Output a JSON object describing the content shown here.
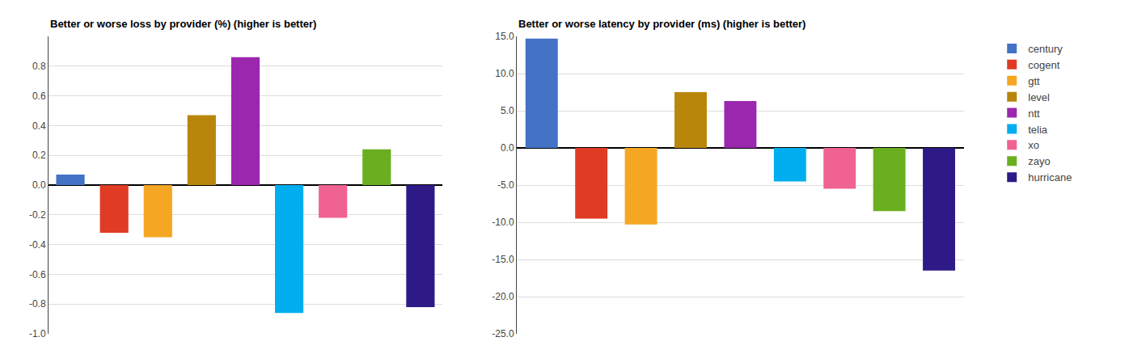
{
  "chart_data": [
    {
      "type": "bar",
      "title": "Better or worse loss by provider (%) (higher is better)",
      "categories": [
        "century",
        "cogent",
        "gtt",
        "level",
        "ntt",
        "telia",
        "xo",
        "zayo",
        "hurricane"
      ],
      "values": [
        0.07,
        -0.32,
        -0.35,
        0.47,
        0.86,
        -0.86,
        -0.22,
        0.24,
        -0.82
      ],
      "colors": [
        "#4472C4",
        "#E03B24",
        "#F5A623",
        "#B8860B",
        "#9B27AF",
        "#00AEEF",
        "#F06292",
        "#6AAF20",
        "#2E1A87"
      ],
      "ylim": [
        -1.0,
        1.0
      ],
      "yticks": [
        {
          "value": -1.0,
          "label": "-1.0"
        },
        -0.8,
        -0.6,
        -0.4,
        -0.2,
        {
          "value": 0.0,
          "label": "0.0"
        },
        0.2,
        0.4,
        0.6,
        0.8
      ],
      "grid": true,
      "tick_labels": "y"
    },
    {
      "type": "bar",
      "title": "Better or worse latency by provider (ms) (higher is better)",
      "categories": [
        "century",
        "cogent",
        "gtt",
        "level",
        "ntt",
        "telia",
        "xo",
        "zayo",
        "hurricane"
      ],
      "values": [
        14.7,
        -9.5,
        -10.3,
        7.5,
        6.3,
        -4.5,
        -5.5,
        -8.5,
        -16.5
      ],
      "colors": [
        "#4472C4",
        "#E03B24",
        "#F5A623",
        "#B8860B",
        "#9B27AF",
        "#00AEEF",
        "#F06292",
        "#6AAF20",
        "#2E1A87"
      ],
      "ylim": [
        -25.0,
        15.0
      ],
      "yticks": [
        {
          "value": -25.0,
          "label": "-25.0"
        },
        {
          "value": -20.0,
          "label": "-20.0"
        },
        {
          "value": -15.0,
          "label": "-15.0"
        },
        {
          "value": -10.0,
          "label": "-10.0"
        },
        {
          "value": -5.0,
          "label": "-5.0"
        },
        {
          "value": 0.0,
          "label": "0.0"
        },
        {
          "value": 5.0,
          "label": "5.0"
        },
        {
          "value": 10.0,
          "label": "10.0"
        },
        {
          "value": 15.0,
          "label": "15.0"
        }
      ],
      "grid": true,
      "tick_labels": "y",
      "legend": "right"
    }
  ]
}
